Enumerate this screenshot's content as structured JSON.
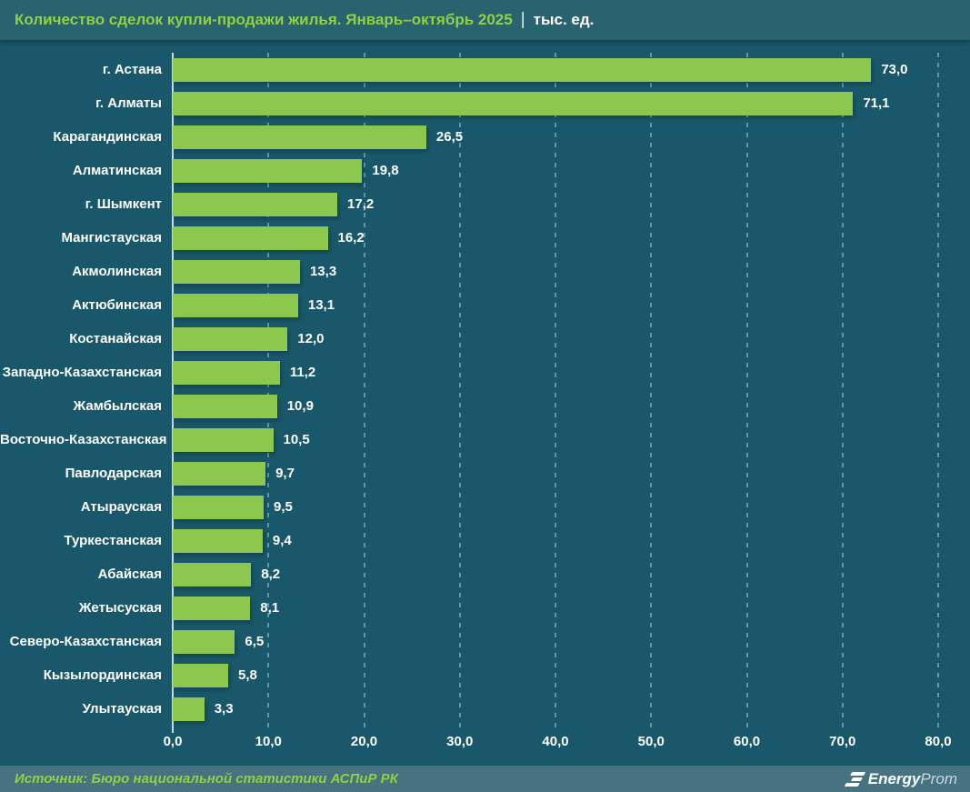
{
  "header": {
    "title": "Количество сделок купли-продажи жилья. Январь–октябрь 2025",
    "separator": "|",
    "unit": "тыс. ед."
  },
  "chart_data": {
    "type": "bar",
    "orientation": "horizontal",
    "title": "Количество сделок купли-продажи жилья. Январь–октябрь 2025",
    "unit": "тыс. ед.",
    "categories": [
      "г. Астана",
      "г. Алматы",
      "Карагандинская",
      "Алматинская",
      "г. Шымкент",
      "Мангистауская",
      "Акмолинская",
      "Актюбинская",
      "Костанайская",
      "Западно-Казахстанская",
      "Жамбылская",
      "Восточно-Казахстанская",
      "Павлодарская",
      "Атырауская",
      "Туркестанская",
      "Абайская",
      "Жетысуская",
      "Северо-Казахстанская",
      "Кызылординская",
      "Улытауская"
    ],
    "values": [
      73.0,
      71.1,
      26.5,
      19.8,
      17.2,
      16.2,
      13.3,
      13.1,
      12.0,
      11.2,
      10.9,
      10.5,
      9.7,
      9.5,
      9.4,
      8.2,
      8.1,
      6.5,
      5.8,
      3.3
    ],
    "value_labels": [
      "73,0",
      "71,1",
      "26,5",
      "19,8",
      "17,2",
      "16,2",
      "13,3",
      "13,1",
      "12,0",
      "11,2",
      "10,9",
      "10,5",
      "9,7",
      "9,5",
      "9,4",
      "8,2",
      "8,1",
      "6,5",
      "5,8",
      "3,3"
    ],
    "xlim": [
      0,
      80
    ],
    "x_ticks": [
      "0,0",
      "10,0",
      "20,0",
      "30,0",
      "40,0",
      "50,0",
      "60,0",
      "70,0",
      "80,0"
    ],
    "grid": true,
    "legend": false,
    "bar_color": "#8cc84e"
  },
  "footer": {
    "source": "Источник: Бюро национальной статистики АСПиР РК",
    "brand_bold": "Energy",
    "brand_light": "Prom"
  },
  "colors": {
    "header_bg": "#2a6370",
    "body_bg": "#19586a",
    "footer_bg": "#46737f",
    "bar": "#8cc84e",
    "accent_green": "#8fd145",
    "gridline": "#5a9dae"
  }
}
